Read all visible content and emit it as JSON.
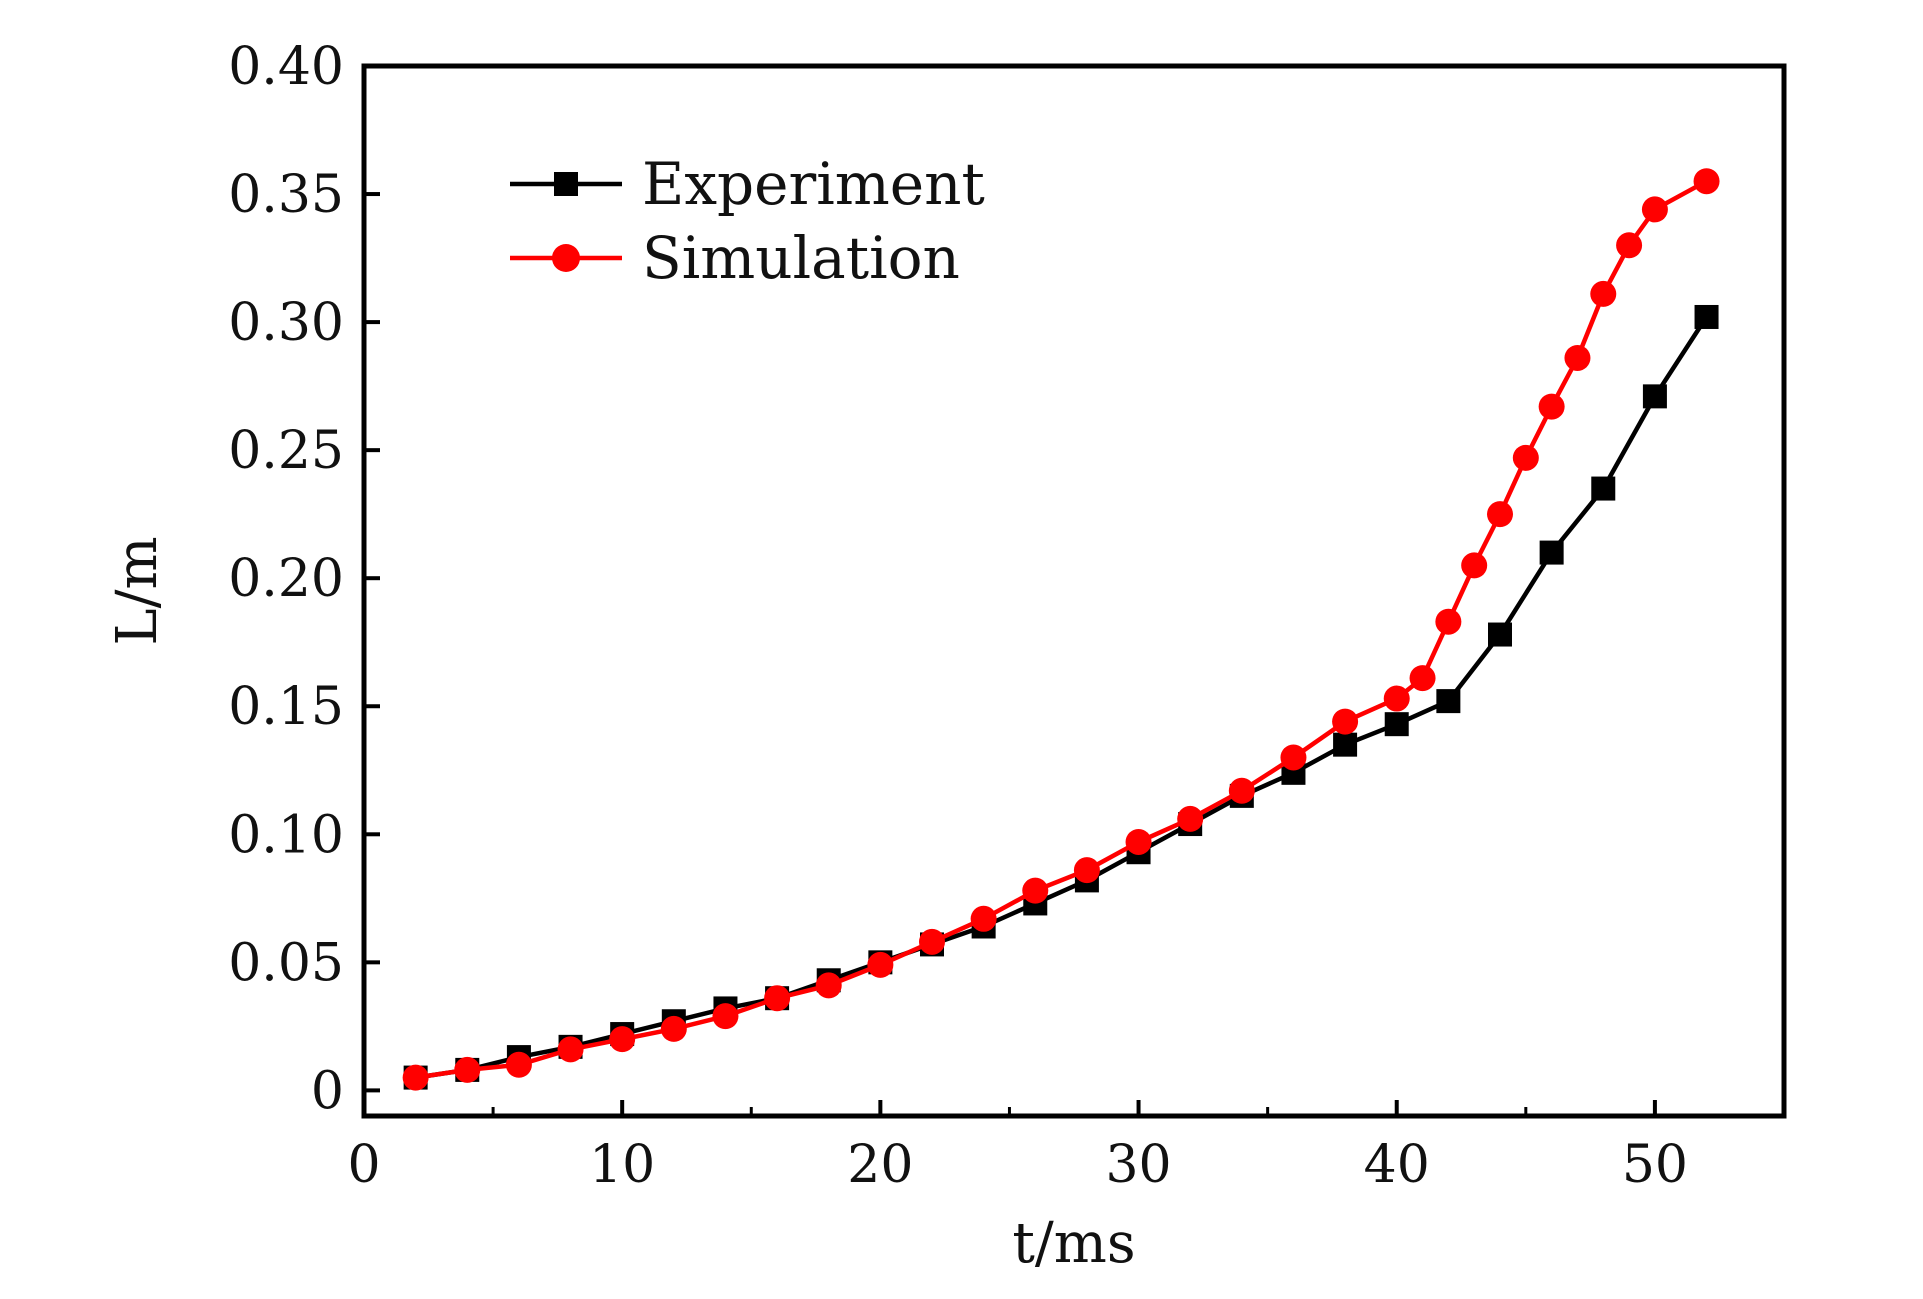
{
  "chart_data": {
    "type": "line",
    "title": "",
    "xlabel": "t/ms",
    "ylabel": "L/m",
    "xlim": [
      0,
      55
    ],
    "ylim": [
      -0.01,
      0.4
    ],
    "x_ticks": [
      0,
      10,
      20,
      30,
      40,
      50
    ],
    "y_ticks": [
      0,
      0.05,
      0.1,
      0.15,
      0.2,
      0.25,
      0.3,
      0.35,
      0.4
    ],
    "x_tick_labels": [
      "0",
      "10",
      "20",
      "30",
      "40",
      "50"
    ],
    "y_tick_labels": [
      "0",
      "0.05",
      "0.10",
      "0.15",
      "0.20",
      "0.25",
      "0.30",
      "0.35",
      "0.40"
    ],
    "grid": false,
    "legend_position": "top-left",
    "series": [
      {
        "name": "Experiment",
        "color": "#000000",
        "marker": "square",
        "x": [
          2,
          4,
          6,
          8,
          10,
          12,
          14,
          16,
          18,
          20,
          22,
          24,
          26,
          28,
          30,
          32,
          34,
          36,
          38,
          40,
          42,
          44,
          46,
          48,
          50,
          52
        ],
        "y": [
          0.005,
          0.008,
          0.013,
          0.017,
          0.022,
          0.027,
          0.032,
          0.036,
          0.043,
          0.05,
          0.057,
          0.064,
          0.073,
          0.082,
          0.093,
          0.104,
          0.115,
          0.124,
          0.135,
          0.143,
          0.152,
          0.178,
          0.21,
          0.235,
          0.271,
          0.302
        ]
      },
      {
        "name": "Simulation",
        "color": "#ff0000",
        "marker": "circle",
        "x": [
          2,
          4,
          6,
          8,
          10,
          12,
          14,
          16,
          18,
          20,
          22,
          24,
          26,
          28,
          30,
          32,
          34,
          36,
          38,
          40,
          41,
          42,
          43,
          44,
          45,
          46,
          47,
          48,
          49,
          50,
          52
        ],
        "y": [
          0.005,
          0.008,
          0.01,
          0.016,
          0.02,
          0.024,
          0.029,
          0.036,
          0.041,
          0.049,
          0.058,
          0.067,
          0.078,
          0.086,
          0.097,
          0.106,
          0.117,
          0.13,
          0.144,
          0.153,
          0.161,
          0.183,
          0.205,
          0.225,
          0.247,
          0.267,
          0.286,
          0.311,
          0.33,
          0.344,
          0.355
        ]
      }
    ]
  }
}
